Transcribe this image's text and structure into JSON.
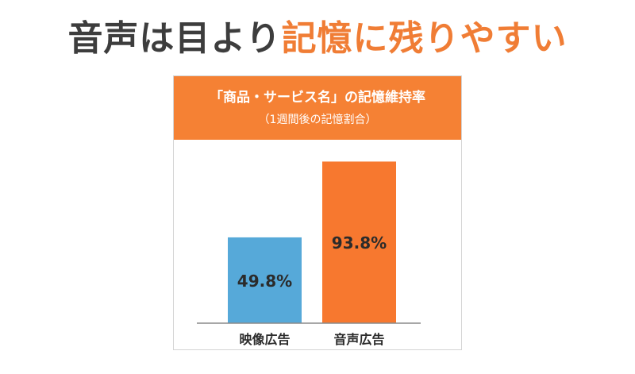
{
  "headline": {
    "part_a": "音声は目より",
    "part_b": "記憶に残りやすい"
  },
  "colors": {
    "headline_dark": "#3d3d3d",
    "accent_orange": "#f58134",
    "bar_blue": "#56a9d9",
    "bar_orange": "#f7782f",
    "label_dark": "#2b2b2b",
    "axis": "#8a8a8a"
  },
  "chart_data": {
    "type": "bar",
    "title": "「商品・サービス名」の記憶維持率",
    "subtitle": "（1週間後の記憶割合）",
    "categories": [
      "映像広告",
      "音声広告"
    ],
    "values": [
      49.8,
      93.8
    ],
    "data_labels": [
      "49.8%",
      "93.8%"
    ],
    "bar_colors": [
      "#56a9d9",
      "#f7782f"
    ],
    "ylim": [
      0,
      100
    ],
    "grid": false,
    "legend": "none"
  }
}
